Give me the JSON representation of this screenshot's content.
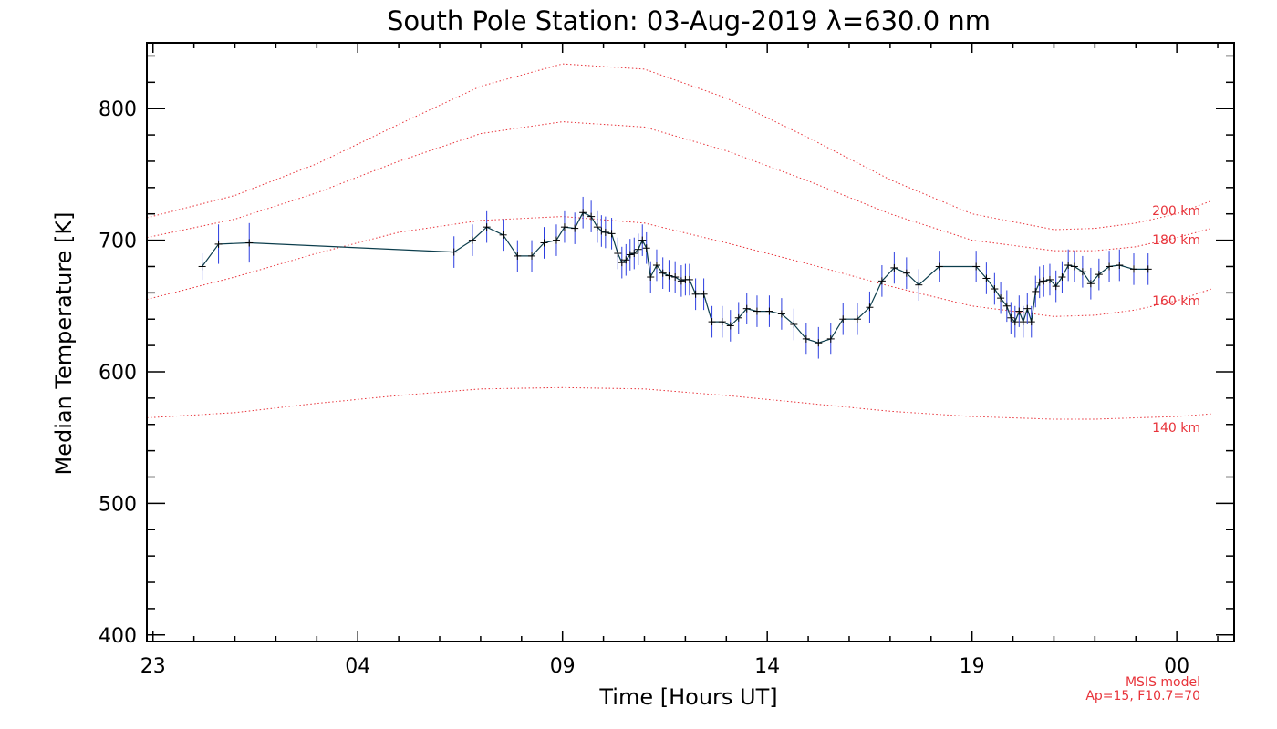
{
  "chart_data": {
    "type": "line",
    "title": "South Pole Station: 03-Aug-2019 λ=630.0 nm",
    "xlabel": "Time [Hours UT]",
    "ylabel": "Median Temperature [K]",
    "xlim": [
      22.85,
      49.4
    ],
    "ylim": [
      395,
      850
    ],
    "x_ticks": [
      {
        "value": 23,
        "label": "23"
      },
      {
        "value": 28,
        "label": "04"
      },
      {
        "value": 33,
        "label": "09"
      },
      {
        "value": 38,
        "label": "14"
      },
      {
        "value": 43,
        "label": "19"
      },
      {
        "value": 48,
        "label": "00"
      }
    ],
    "y_ticks": [
      {
        "value": 400,
        "label": "400"
      },
      {
        "value": 500,
        "label": "500"
      },
      {
        "value": 600,
        "label": "600"
      },
      {
        "value": 700,
        "label": "700"
      },
      {
        "value": 800,
        "label": "800"
      }
    ],
    "colors": {
      "data_line": "#0b3d4c",
      "error_bar": "#2b3de0",
      "marker": "#000000",
      "model": "#e8333a"
    },
    "series": [
      {
        "name": "Median Temperature",
        "x": [
          24.2,
          24.6,
          25.35,
          30.35,
          30.8,
          31.15,
          31.55,
          31.9,
          32.25,
          32.55,
          32.85,
          33.05,
          33.3,
          33.5,
          33.7,
          33.85,
          33.95,
          34.05,
          34.2,
          34.35,
          34.45,
          34.55,
          34.65,
          34.75,
          34.85,
          34.95,
          35.05,
          35.15,
          35.3,
          35.45,
          35.6,
          35.75,
          35.9,
          36.0,
          36.1,
          36.25,
          36.45,
          36.65,
          36.9,
          37.1,
          37.3,
          37.5,
          37.75,
          38.05,
          38.35,
          38.65,
          38.95,
          39.25,
          39.55,
          39.85,
          40.2,
          40.5,
          40.8,
          41.1,
          41.4,
          41.7,
          42.2,
          43.1,
          43.35,
          43.55,
          43.7,
          43.85,
          43.95,
          44.05,
          44.15,
          44.25,
          44.35,
          44.45,
          44.55,
          44.65,
          44.75,
          44.9,
          45.05,
          45.2,
          45.35,
          45.5,
          45.7,
          45.9,
          46.1,
          46.35,
          46.6,
          46.95,
          47.3
        ],
        "y": [
          680,
          697,
          698,
          691,
          700,
          710,
          704,
          688,
          688,
          698,
          700,
          710,
          709,
          721,
          718,
          710,
          707,
          706,
          705,
          690,
          683,
          685,
          689,
          690,
          693,
          700,
          694,
          672,
          681,
          675,
          673,
          672,
          669,
          670,
          670,
          659,
          659,
          638,
          638,
          635,
          641,
          648,
          646,
          646,
          644,
          636,
          625,
          622,
          625,
          640,
          640,
          649,
          669,
          679,
          675,
          666,
          680,
          680,
          671,
          663,
          656,
          650,
          641,
          638,
          646,
          638,
          648,
          638,
          661,
          668,
          669,
          670,
          665,
          672,
          681,
          680,
          676,
          667,
          674,
          680,
          681,
          678,
          678
        ],
        "err": [
          10,
          15,
          15,
          12,
          12,
          12,
          12,
          12,
          12,
          12,
          12,
          12,
          12,
          12,
          12,
          12,
          12,
          12,
          12,
          12,
          12,
          12,
          12,
          12,
          12,
          12,
          12,
          12,
          12,
          12,
          12,
          12,
          12,
          12,
          12,
          12,
          12,
          12,
          12,
          12,
          12,
          12,
          12,
          12,
          12,
          12,
          12,
          12,
          12,
          12,
          12,
          12,
          12,
          12,
          12,
          12,
          12,
          12,
          12,
          12,
          12,
          12,
          12,
          12,
          12,
          12,
          12,
          12,
          12,
          12,
          12,
          12,
          12,
          12,
          12,
          12,
          12,
          12,
          12,
          12,
          12,
          12,
          12
        ]
      }
    ],
    "model_curves": [
      {
        "label": "200 km",
        "x": [
          22.85,
          25,
          27,
          29,
          31,
          33,
          35,
          37,
          39,
          41,
          43,
          45,
          46,
          47,
          48,
          48.85
        ],
        "y": [
          717,
          734,
          758,
          788,
          817,
          834,
          830,
          808,
          778,
          746,
          720,
          708,
          709,
          713,
          720,
          730
        ]
      },
      {
        "label": "180 km",
        "x": [
          22.85,
          25,
          27,
          29,
          31,
          33,
          35,
          37,
          39,
          41,
          43,
          45,
          46,
          47,
          48,
          48.85
        ],
        "y": [
          702,
          716,
          736,
          760,
          781,
          790,
          786,
          768,
          745,
          720,
          700,
          692,
          692,
          695,
          702,
          709
        ]
      },
      {
        "label": "160 km",
        "x": [
          22.85,
          25,
          27,
          29,
          31,
          33,
          35,
          37,
          39,
          41,
          43,
          45,
          46,
          47,
          48,
          48.85
        ],
        "y": [
          655,
          672,
          690,
          706,
          715,
          718,
          713,
          698,
          682,
          665,
          650,
          642,
          643,
          647,
          654,
          663
        ]
      },
      {
        "label": "140 km",
        "x": [
          22.85,
          25,
          27,
          29,
          31,
          33,
          35,
          37,
          39,
          41,
          43,
          45,
          46,
          47,
          48,
          48.85
        ],
        "y": [
          565,
          569,
          576,
          582,
          587,
          588,
          587,
          582,
          576,
          570,
          566,
          564,
          564,
          565,
          566,
          568
        ]
      }
    ],
    "curve_labels": {
      "200": "200 km",
      "180": "180 km",
      "160": "160 km",
      "140": "140 km"
    },
    "footnote": {
      "line1": "MSIS model",
      "line2": "Ap=15, F10.7=70"
    }
  }
}
